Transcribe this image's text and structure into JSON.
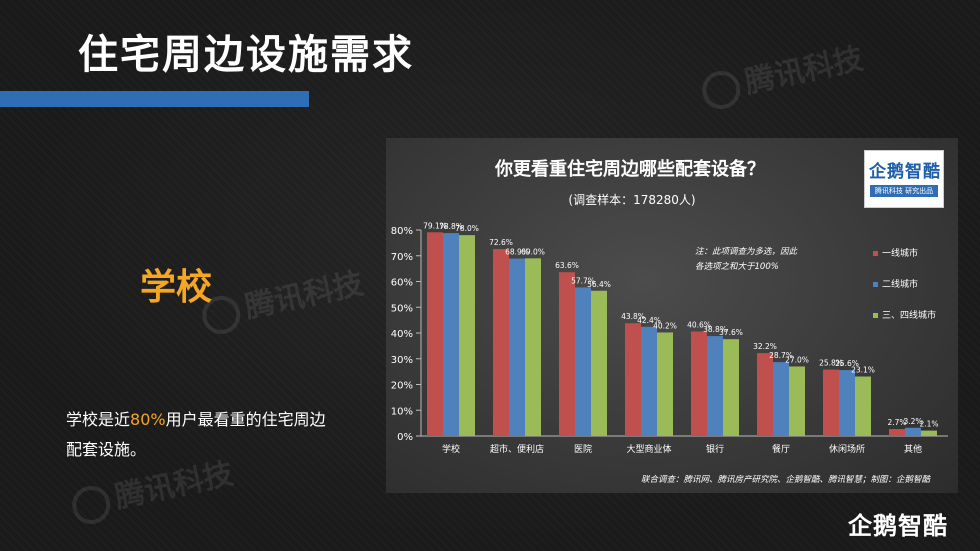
{
  "page": {
    "title": "住宅周边设施需求",
    "side_heading": "学校",
    "side_text_before": "学校是近",
    "side_text_highlight": "80%",
    "side_text_after": "用户最看重的住宅周边配套设施。",
    "watermark_text": "腾讯科技",
    "logo_text": "企鹅智酷",
    "logo_sub": "腾讯科技 研究出品",
    "corner_logo": "企鹅智酷"
  },
  "colors": {
    "accent_orange": "#f5a623",
    "title_bar_blue": "#2f6db4",
    "series_red": "#c0504d",
    "series_blue": "#4f81bd",
    "series_green": "#9bbb59"
  },
  "chart_data": {
    "type": "bar",
    "title": "你更看重住宅周边哪些配套设备？",
    "subtitle": "(调查样本：178280人)",
    "categories": [
      "学校",
      "超市、便利店",
      "医院",
      "大型商业体",
      "银行",
      "餐厅",
      "休闲场所",
      "其他"
    ],
    "series": [
      {
        "name": "一线城市",
        "color": "#c0504d",
        "values": [
          79.1,
          72.6,
          63.6,
          43.8,
          40.6,
          32.2,
          25.8,
          2.7
        ]
      },
      {
        "name": "二线城市",
        "color": "#4f81bd",
        "values": [
          78.8,
          68.9,
          57.7,
          42.4,
          38.8,
          28.7,
          25.6,
          3.2
        ]
      },
      {
        "name": "三、四线城市",
        "color": "#9bbb59",
        "values": [
          78.0,
          69.0,
          56.4,
          40.2,
          37.6,
          27.0,
          23.1,
          2.1
        ]
      }
    ],
    "y_ticks": [
      "0%",
      "10%",
      "20%",
      "30%",
      "40%",
      "50%",
      "60%",
      "70%",
      "80%"
    ],
    "ylim": [
      0,
      80
    ],
    "legend_position": "right",
    "note_line1": "注：此项调查为多选，因此",
    "note_line2": "各选项之和大于100%",
    "source": "联合调查：腾讯网、腾讯房产研究院、企鹅智酷、腾讯智慧；制图：企鹅智酷"
  }
}
